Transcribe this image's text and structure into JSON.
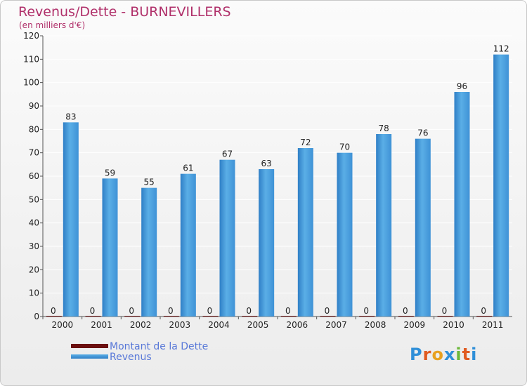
{
  "title": "Revenus/Dette - BURNEVILLERS",
  "subtitle": "(en milliers d'€)",
  "legend": {
    "debt_label": "Montant de la Dette",
    "revenue_label": "Revenus"
  },
  "logo": "Proxiti",
  "colors": {
    "revenue": "#4a9fe0",
    "debt": "#6b0f0f",
    "title": "#b0306a",
    "legend_text": "#5878d8"
  },
  "chart_data": {
    "type": "bar",
    "title": "Revenus/Dette - BURNEVILLERS",
    "ylabel": "(en milliers d'€)",
    "xlabel": "",
    "ylim": [
      0,
      120
    ],
    "yticks": [
      0,
      10,
      20,
      30,
      40,
      50,
      60,
      70,
      80,
      90,
      100,
      110,
      120
    ],
    "grid": true,
    "legend_position": "bottom-left",
    "categories": [
      "2000",
      "2001",
      "2002",
      "2003",
      "2004",
      "2005",
      "2006",
      "2007",
      "2008",
      "2009",
      "2010",
      "2011"
    ],
    "series": [
      {
        "name": "Montant de la Dette",
        "values": [
          0,
          0,
          0,
          0,
          0,
          0,
          0,
          0,
          0,
          0,
          0,
          0
        ]
      },
      {
        "name": "Revenus",
        "values": [
          83,
          59,
          55,
          61,
          67,
          63,
          72,
          70,
          78,
          76,
          96,
          112
        ]
      }
    ]
  }
}
